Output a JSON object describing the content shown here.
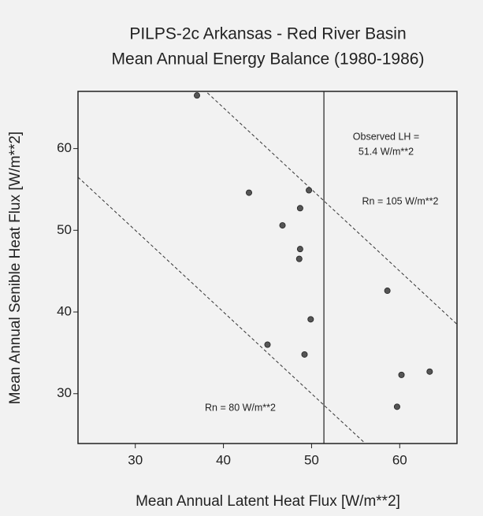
{
  "chart_data": {
    "type": "scatter",
    "title": [
      "PILPS-2c Arkansas - Red River Basin",
      "Mean Annual Energy Balance (1980-1986)"
    ],
    "x_label": "Mean Annual Latent Heat Flux [W/m**2]",
    "y_label": "Mean Annual Senible Heat Flux [W/m**2]",
    "x": [
      37.0,
      42.9,
      49.7,
      48.7,
      46.7,
      48.7,
      48.6,
      58.6,
      49.9,
      45.0,
      49.2,
      63.4,
      60.2,
      59.7
    ],
    "values": [
      66.5,
      54.6,
      54.9,
      52.7,
      50.6,
      47.7,
      46.5,
      42.6,
      39.1,
      36.0,
      34.8,
      32.7,
      32.3,
      28.4
    ],
    "color": "#555555",
    "xlim": [
      23.5,
      66.5
    ],
    "ylim": [
      23.9,
      67.0
    ],
    "xticks": [
      30,
      40,
      50,
      60
    ],
    "yticks": [
      30,
      40,
      50,
      60
    ],
    "grid": false,
    "vline": {
      "x": 51.4,
      "label": [
        "Observed LH =",
        "51.4 W/m**2"
      ]
    },
    "sum_lines": [
      {
        "sum": 80,
        "label": "Rn = 80 W/m**2"
      },
      {
        "sum": 105,
        "label": "Rn = 105 W/m**2"
      }
    ]
  }
}
